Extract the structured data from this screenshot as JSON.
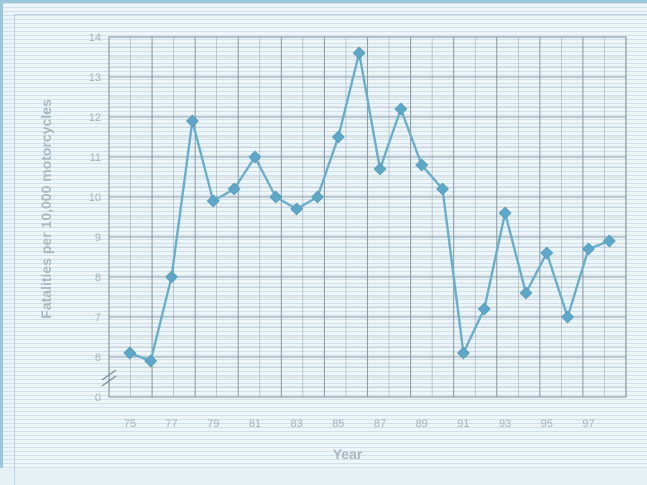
{
  "chart_data": {
    "type": "line",
    "title": "",
    "xlabel": "Year",
    "ylabel": "Fatalities per 10,000 motorcycles",
    "x": [
      75,
      76,
      77,
      78,
      79,
      80,
      81,
      82,
      83,
      84,
      85,
      86,
      87,
      88,
      89,
      90,
      91,
      92,
      93,
      94,
      95,
      96,
      97,
      98
    ],
    "series": [
      {
        "values": [
          6.1,
          5.9,
          8.0,
          11.9,
          9.9,
          10.2,
          11.0,
          10.0,
          9.7,
          10.0,
          11.5,
          13.6,
          10.7,
          12.2,
          10.8,
          10.2,
          6.1,
          7.2,
          9.6,
          7.6,
          8.6,
          7.0,
          8.7,
          8.9
        ]
      }
    ],
    "x_tick_labels": [
      "75",
      "77",
      "79",
      "81",
      "83",
      "85",
      "87",
      "89",
      "91",
      "93",
      "95",
      "97"
    ],
    "y_tick_labels": [
      "0",
      "6",
      "7",
      "8",
      "9",
      "10",
      "11",
      "12",
      "13",
      "14"
    ],
    "ylim": [
      0,
      14
    ],
    "y_axis_break": true,
    "grid": true,
    "colors": {
      "line": "#6aaecb",
      "marker": "#5ea7c6",
      "grid": "#8f9ea6",
      "tick_text": "#a3b3bd"
    }
  }
}
